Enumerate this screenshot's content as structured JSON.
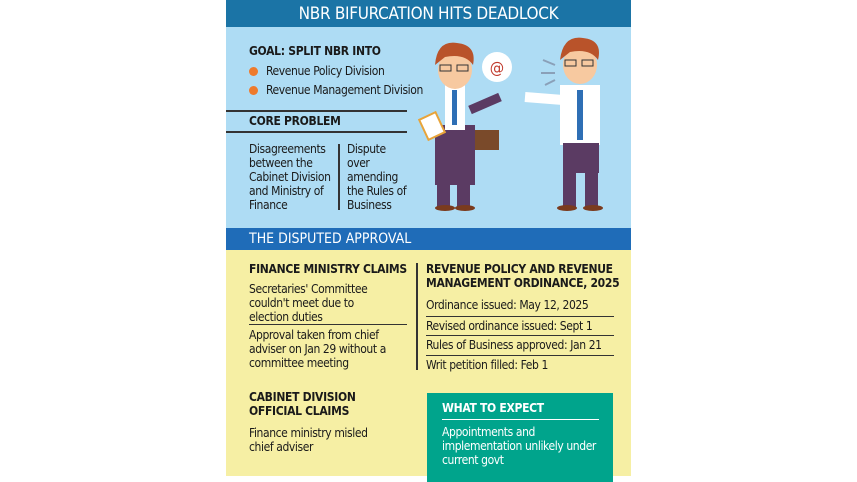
{
  "title": "NBR BIFURCATION HITS DEADLOCK",
  "goal": {
    "heading": "GOAL: SPLIT NBR INTO",
    "items": [
      "Revenue Policy Division",
      "Revenue Management Division"
    ]
  },
  "core_problem": {
    "heading": "CORE PROBLEM",
    "left": "Disagreements between the Cabinet Division and Ministry of Finance",
    "right": "Dispute over amending the Rules of Business"
  },
  "illustration": {
    "speech_bubble": "@"
  },
  "section": "THE DISPUTED APPROVAL",
  "finance": {
    "heading": "FINANCE MINISTRY CLAIMS",
    "items": [
      "Secretaries' Committee couldn't meet due to election duties",
      "Approval taken from chief adviser on Jan 29 without a committee meeting"
    ]
  },
  "cabinet": {
    "heading": "CABINET DIVISION OFFICIAL CLAIMS",
    "text": "Finance ministry misled chief adviser"
  },
  "ordinance": {
    "heading": "REVENUE POLICY AND REVENUE MANAGEMENT ORDINANCE, 2025",
    "items": [
      "Ordinance issued: May 12, 2025",
      "Revised ordinance issued: Sept 1",
      "Rules of Business approved: Jan 21",
      "Writ petition filled: Feb 1"
    ]
  },
  "expect": {
    "heading": "WHAT TO EXPECT",
    "text": "Appointments and implementation unlikely under current govt"
  },
  "colors": {
    "title_bar": "#1b74a6",
    "top_panel": "#aedcf4",
    "section_bar": "#1f6cb8",
    "bottom_panel": "#f6efa4",
    "teal_box": "#00a48c",
    "bullet": "#ee7a2c"
  }
}
